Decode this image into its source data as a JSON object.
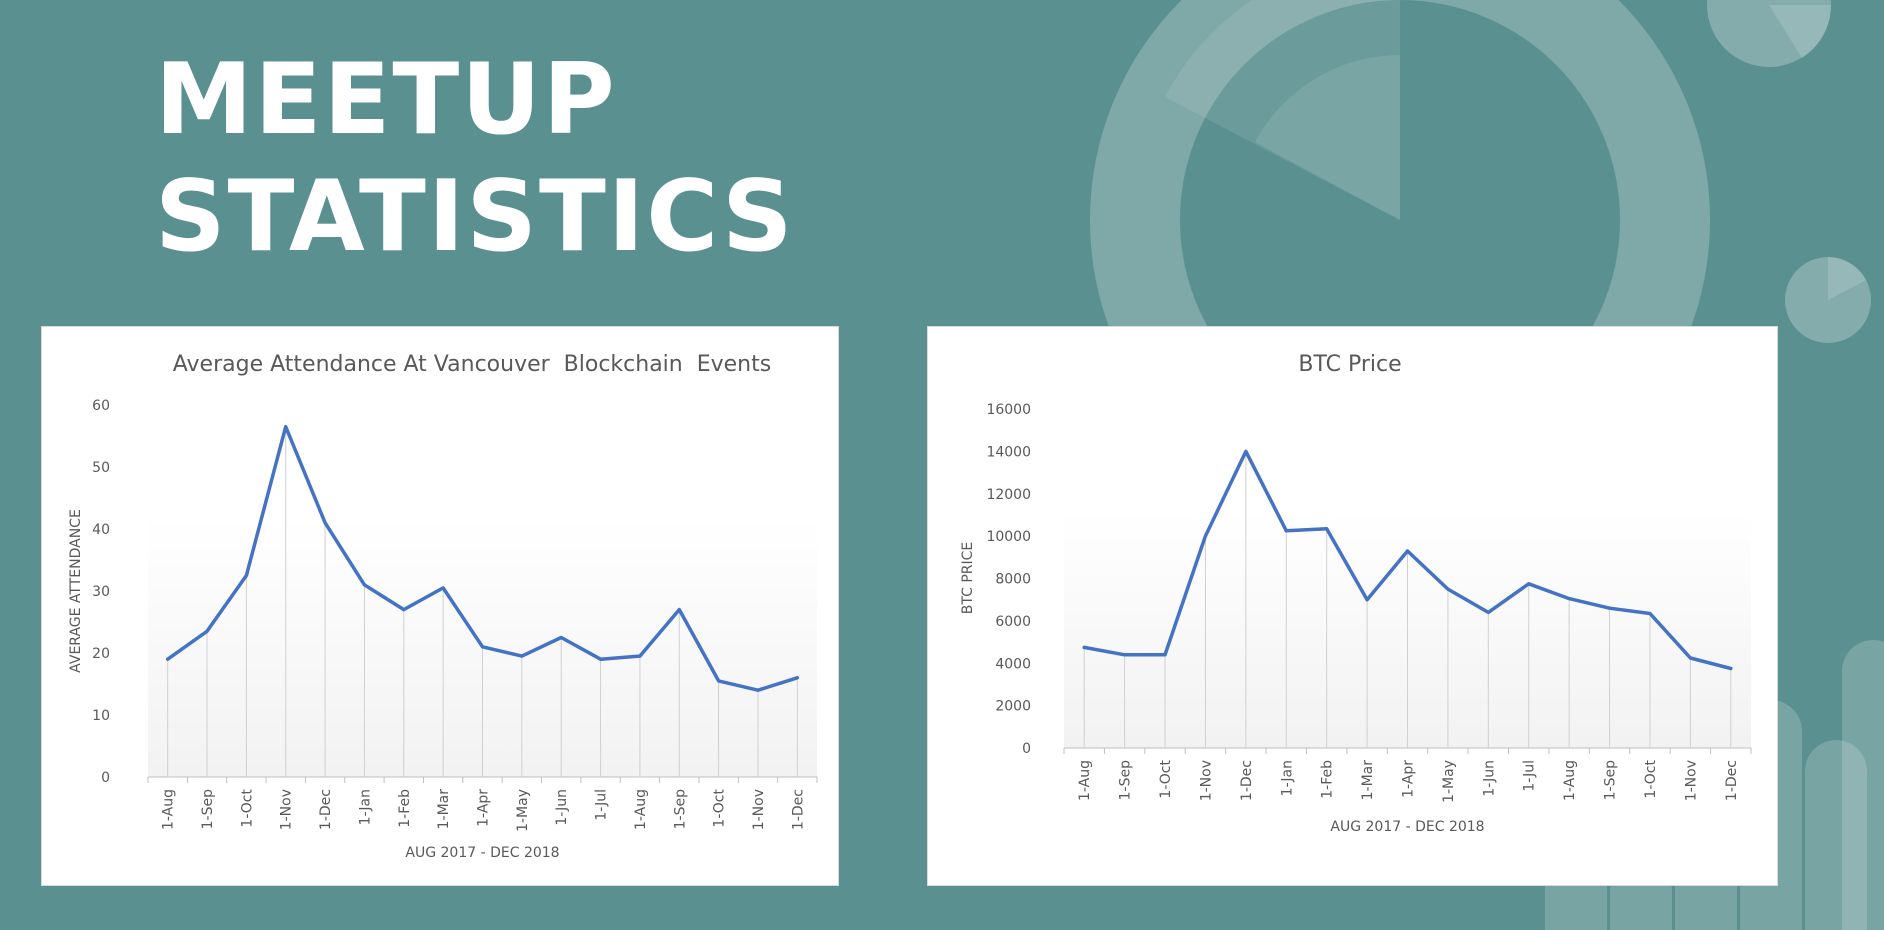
{
  "slide": {
    "title_line1": "MEETUP",
    "title_line2": "STATISTICS"
  },
  "colors": {
    "background": "#5b9090",
    "line": "#4472c4",
    "text": "#595959"
  },
  "chart_data": [
    {
      "id": "attendance",
      "type": "line",
      "title": "Average Attendance At Vancouver  Blockchain  Events",
      "xlabel": "AUG 2017 - DEC 2018",
      "ylabel": "AVERAGE ATTENDANCE",
      "categories": [
        "1-Aug",
        "1-Sep",
        "1-Oct",
        "1-Nov",
        "1-Dec",
        "1-Jan",
        "1-Feb",
        "1-Mar",
        "1-Apr",
        "1-May",
        "1-Jun",
        "1-Jul",
        "1-Aug",
        "1-Sep",
        "1-Oct",
        "1-Nov",
        "1-Dec"
      ],
      "values": [
        19,
        23.5,
        32.5,
        56.5,
        41,
        31,
        27,
        30.5,
        21,
        19.5,
        22.5,
        19,
        19.5,
        27,
        15.5,
        14,
        16
      ],
      "ylim": [
        0,
        60
      ],
      "yticks": [
        0,
        10,
        20,
        30,
        40,
        50,
        60
      ],
      "grid": false,
      "droplines": true
    },
    {
      "id": "btc",
      "type": "line",
      "title": "BTC Price",
      "xlabel": "AUG 2017 - DEC 2018",
      "ylabel": "BTC PRICE",
      "categories": [
        "1-Aug",
        "1-Sep",
        "1-Oct",
        "1-Nov",
        "1-Dec",
        "1-Jan",
        "1-Feb",
        "1-Mar",
        "1-Apr",
        "1-May",
        "1-Jun",
        "1-Jul",
        "1-Aug",
        "1-Sep",
        "1-Oct",
        "1-Nov",
        "1-Dec"
      ],
      "values": [
        4750,
        4400,
        4400,
        10000,
        14000,
        10250,
        10350,
        7000,
        9300,
        7500,
        6400,
        7750,
        7050,
        6600,
        6350,
        4250,
        3750
      ],
      "ylim": [
        0,
        16000
      ],
      "yticks": [
        0,
        2000,
        4000,
        6000,
        8000,
        10000,
        12000,
        14000,
        16000
      ],
      "grid": false,
      "droplines": true
    }
  ]
}
